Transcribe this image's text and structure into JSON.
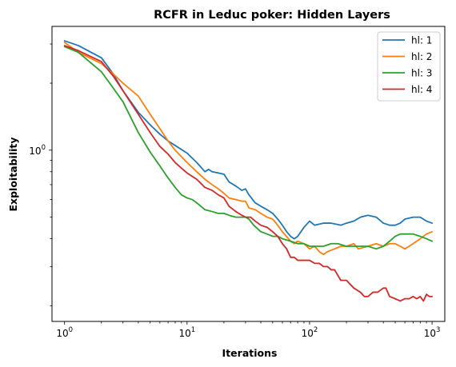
{
  "chart_data": {
    "type": "line",
    "title": "RCFR in Leduc poker: Hidden Layers",
    "xlabel": "Iterations",
    "ylabel": "Exploitability",
    "xscale": "log",
    "yscale": "log",
    "xlim": [
      0.79,
      1270
    ],
    "ylim": [
      0.17,
      3.6
    ],
    "grid": false,
    "legend": "top-right",
    "xticks": [
      {
        "value": 1,
        "base": "10",
        "exp": "0"
      },
      {
        "value": 10,
        "base": "10",
        "exp": "1"
      },
      {
        "value": 100,
        "base": "10",
        "exp": "2"
      },
      {
        "value": 1000,
        "base": "10",
        "exp": "3"
      }
    ],
    "yticks": [
      {
        "value": 1,
        "base": "10",
        "exp": "0"
      }
    ],
    "series": [
      {
        "name": "hl: 1",
        "color": "#1f77b4",
        "points": [
          [
            1,
            3.1
          ],
          [
            1.3,
            2.95
          ],
          [
            2,
            2.6
          ],
          [
            2.5,
            2.2
          ],
          [
            3,
            1.85
          ],
          [
            4,
            1.48
          ],
          [
            5,
            1.3
          ],
          [
            6,
            1.18
          ],
          [
            7,
            1.1
          ],
          [
            8,
            1.05
          ],
          [
            10,
            0.97
          ],
          [
            12,
            0.88
          ],
          [
            14,
            0.8
          ],
          [
            15,
            0.82
          ],
          [
            16,
            0.8
          ],
          [
            18,
            0.79
          ],
          [
            20,
            0.78
          ],
          [
            22,
            0.72
          ],
          [
            25,
            0.69
          ],
          [
            28,
            0.66
          ],
          [
            30,
            0.67
          ],
          [
            32,
            0.63
          ],
          [
            36,
            0.58
          ],
          [
            40,
            0.56
          ],
          [
            45,
            0.54
          ],
          [
            50,
            0.52
          ],
          [
            55,
            0.49
          ],
          [
            60,
            0.46
          ],
          [
            65,
            0.43
          ],
          [
            70,
            0.41
          ],
          [
            75,
            0.4
          ],
          [
            80,
            0.41
          ],
          [
            90,
            0.45
          ],
          [
            100,
            0.48
          ],
          [
            110,
            0.46
          ],
          [
            130,
            0.47
          ],
          [
            150,
            0.47
          ],
          [
            180,
            0.46
          ],
          [
            200,
            0.47
          ],
          [
            230,
            0.48
          ],
          [
            260,
            0.5
          ],
          [
            300,
            0.51
          ],
          [
            350,
            0.5
          ],
          [
            400,
            0.47
          ],
          [
            450,
            0.46
          ],
          [
            500,
            0.46
          ],
          [
            550,
            0.47
          ],
          [
            600,
            0.49
          ],
          [
            700,
            0.5
          ],
          [
            800,
            0.5
          ],
          [
            900,
            0.48
          ],
          [
            1000,
            0.47
          ]
        ]
      },
      {
        "name": "hl: 2",
        "color": "#ff7f0e",
        "points": [
          [
            1,
            3.05
          ],
          [
            1.3,
            2.75
          ],
          [
            2,
            2.45
          ],
          [
            2.5,
            2.2
          ],
          [
            3,
            2.0
          ],
          [
            4,
            1.75
          ],
          [
            5,
            1.45
          ],
          [
            6,
            1.25
          ],
          [
            7,
            1.1
          ],
          [
            8,
            1.0
          ],
          [
            10,
            0.88
          ],
          [
            12,
            0.8
          ],
          [
            14,
            0.74
          ],
          [
            16,
            0.7
          ],
          [
            18,
            0.67
          ],
          [
            20,
            0.64
          ],
          [
            22,
            0.61
          ],
          [
            25,
            0.6
          ],
          [
            28,
            0.59
          ],
          [
            30,
            0.59
          ],
          [
            32,
            0.55
          ],
          [
            36,
            0.54
          ],
          [
            40,
            0.52
          ],
          [
            45,
            0.5
          ],
          [
            50,
            0.49
          ],
          [
            55,
            0.46
          ],
          [
            60,
            0.43
          ],
          [
            70,
            0.39
          ],
          [
            75,
            0.38
          ],
          [
            80,
            0.39
          ],
          [
            90,
            0.38
          ],
          [
            100,
            0.36
          ],
          [
            110,
            0.37
          ],
          [
            120,
            0.35
          ],
          [
            130,
            0.34
          ],
          [
            140,
            0.35
          ],
          [
            160,
            0.36
          ],
          [
            180,
            0.37
          ],
          [
            200,
            0.37
          ],
          [
            230,
            0.38
          ],
          [
            250,
            0.36
          ],
          [
            300,
            0.37
          ],
          [
            350,
            0.38
          ],
          [
            400,
            0.37
          ],
          [
            450,
            0.38
          ],
          [
            500,
            0.38
          ],
          [
            550,
            0.37
          ],
          [
            600,
            0.36
          ],
          [
            650,
            0.37
          ],
          [
            700,
            0.38
          ],
          [
            800,
            0.4
          ],
          [
            900,
            0.42
          ],
          [
            1000,
            0.43
          ]
        ]
      },
      {
        "name": "hl: 3",
        "color": "#2ca02c",
        "points": [
          [
            1,
            2.92
          ],
          [
            1.3,
            2.75
          ],
          [
            2,
            2.25
          ],
          [
            2.5,
            1.9
          ],
          [
            3,
            1.65
          ],
          [
            4,
            1.2
          ],
          [
            5,
            0.98
          ],
          [
            6,
            0.85
          ],
          [
            7,
            0.75
          ],
          [
            8,
            0.68
          ],
          [
            9,
            0.63
          ],
          [
            10,
            0.61
          ],
          [
            11,
            0.6
          ],
          [
            12,
            0.58
          ],
          [
            14,
            0.54
          ],
          [
            16,
            0.53
          ],
          [
            18,
            0.52
          ],
          [
            20,
            0.52
          ],
          [
            22,
            0.51
          ],
          [
            25,
            0.5
          ],
          [
            28,
            0.5
          ],
          [
            30,
            0.5
          ],
          [
            32,
            0.49
          ],
          [
            35,
            0.46
          ],
          [
            40,
            0.43
          ],
          [
            45,
            0.42
          ],
          [
            50,
            0.41
          ],
          [
            55,
            0.41
          ],
          [
            60,
            0.4
          ],
          [
            70,
            0.39
          ],
          [
            80,
            0.38
          ],
          [
            90,
            0.38
          ],
          [
            100,
            0.37
          ],
          [
            110,
            0.37
          ],
          [
            130,
            0.37
          ],
          [
            150,
            0.38
          ],
          [
            170,
            0.38
          ],
          [
            200,
            0.37
          ],
          [
            230,
            0.37
          ],
          [
            260,
            0.37
          ],
          [
            300,
            0.37
          ],
          [
            350,
            0.36
          ],
          [
            400,
            0.37
          ],
          [
            450,
            0.39
          ],
          [
            500,
            0.41
          ],
          [
            550,
            0.42
          ],
          [
            600,
            0.42
          ],
          [
            700,
            0.42
          ],
          [
            800,
            0.41
          ],
          [
            900,
            0.4
          ],
          [
            1000,
            0.39
          ]
        ]
      },
      {
        "name": "hl: 4",
        "color": "#d62728",
        "points": [
          [
            1,
            2.95
          ],
          [
            1.3,
            2.8
          ],
          [
            2,
            2.5
          ],
          [
            2.5,
            2.15
          ],
          [
            3,
            1.85
          ],
          [
            4,
            1.45
          ],
          [
            5,
            1.2
          ],
          [
            6,
            1.04
          ],
          [
            7,
            0.96
          ],
          [
            8,
            0.88
          ],
          [
            9,
            0.83
          ],
          [
            10,
            0.79
          ],
          [
            12,
            0.74
          ],
          [
            14,
            0.68
          ],
          [
            16,
            0.66
          ],
          [
            18,
            0.63
          ],
          [
            20,
            0.61
          ],
          [
            22,
            0.56
          ],
          [
            25,
            0.53
          ],
          [
            28,
            0.51
          ],
          [
            30,
            0.5
          ],
          [
            33,
            0.5
          ],
          [
            36,
            0.48
          ],
          [
            40,
            0.46
          ],
          [
            45,
            0.45
          ],
          [
            50,
            0.43
          ],
          [
            55,
            0.41
          ],
          [
            60,
            0.38
          ],
          [
            65,
            0.36
          ],
          [
            70,
            0.33
          ],
          [
            75,
            0.33
          ],
          [
            80,
            0.32
          ],
          [
            90,
            0.32
          ],
          [
            100,
            0.32
          ],
          [
            110,
            0.31
          ],
          [
            120,
            0.31
          ],
          [
            130,
            0.3
          ],
          [
            140,
            0.3
          ],
          [
            150,
            0.29
          ],
          [
            160,
            0.29
          ],
          [
            180,
            0.26
          ],
          [
            200,
            0.26
          ],
          [
            230,
            0.24
          ],
          [
            260,
            0.23
          ],
          [
            280,
            0.22
          ],
          [
            300,
            0.22
          ],
          [
            330,
            0.23
          ],
          [
            360,
            0.23
          ],
          [
            400,
            0.24
          ],
          [
            420,
            0.24
          ],
          [
            450,
            0.22
          ],
          [
            500,
            0.215
          ],
          [
            550,
            0.21
          ],
          [
            600,
            0.215
          ],
          [
            650,
            0.215
          ],
          [
            700,
            0.22
          ],
          [
            750,
            0.215
          ],
          [
            800,
            0.22
          ],
          [
            850,
            0.21
          ],
          [
            900,
            0.225
          ],
          [
            950,
            0.22
          ],
          [
            1000,
            0.22
          ]
        ]
      }
    ]
  }
}
